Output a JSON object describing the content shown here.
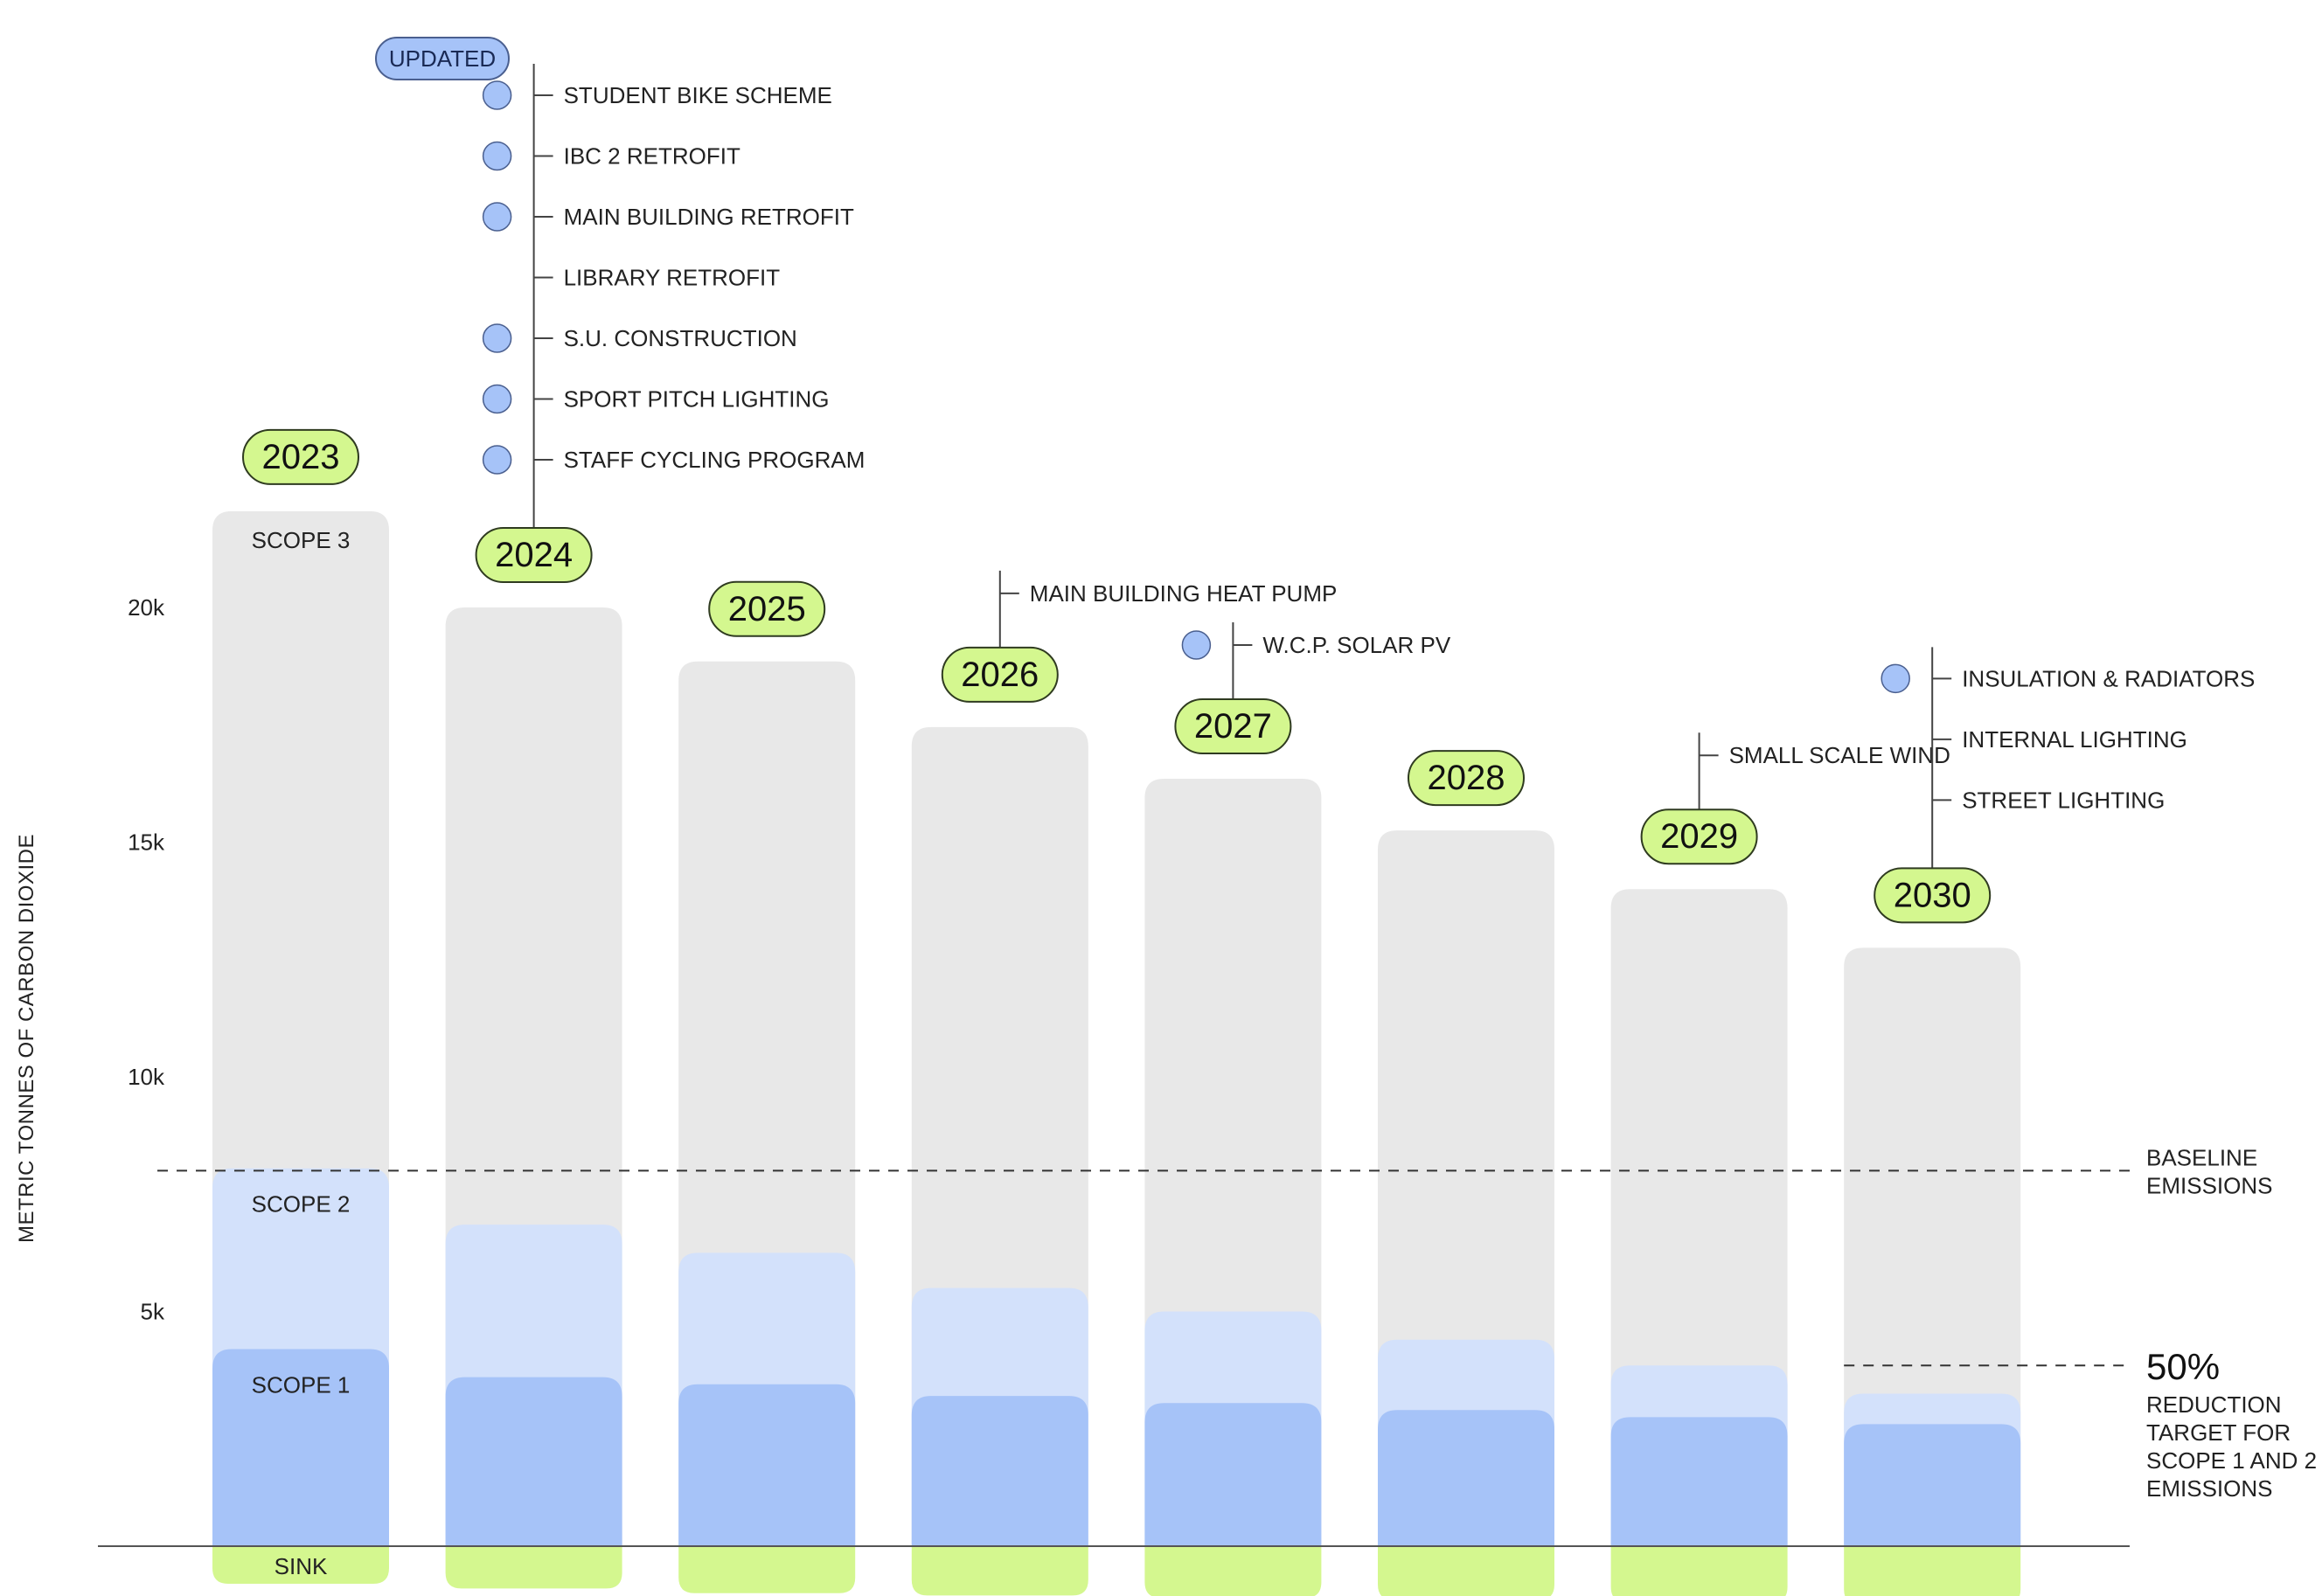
{
  "chart_data": {
    "type": "bar",
    "stacked": true,
    "ylabel": "METRIC TONNES OF CARBON DIOXIDE",
    "yticks": [
      {
        "value": 5000,
        "label": "5k"
      },
      {
        "value": 10000,
        "label": "10k"
      },
      {
        "value": 15000,
        "label": "15k"
      },
      {
        "value": 20000,
        "label": "20k"
      }
    ],
    "ylim": [
      -1200,
      33000
    ],
    "grid": false,
    "categories": [
      "2023",
      "2024",
      "2025",
      "2026",
      "2027",
      "2028",
      "2029",
      "2030"
    ],
    "series": [
      {
        "name": "SCOPE 1",
        "color": "#a6c3f8",
        "values": [
          4200,
          3600,
          3450,
          3200,
          3050,
          2900,
          2750,
          2600
        ]
      },
      {
        "name": "SCOPE 2",
        "color": "#d3e1fb",
        "values": [
          3850,
          3250,
          2800,
          2300,
          1950,
          1500,
          1100,
          650
        ]
      },
      {
        "name": "SCOPE 3",
        "color": "#e8e8e8",
        "values": [
          14000,
          13150,
          12600,
          11950,
          11350,
          10850,
          10150,
          9500
        ]
      },
      {
        "name": "SINK",
        "color": "#d4f78f",
        "values": [
          -800,
          -900,
          -1000,
          -1050,
          -1100,
          -1150,
          -1200,
          -1250
        ]
      }
    ],
    "scope_labels": {
      "scope3": "SCOPE 3",
      "scope2": "SCOPE 2",
      "scope1": "SCOPE 1",
      "sink": "SINK"
    },
    "reference_lines": [
      {
        "value": 8000,
        "style": "dashed",
        "span": "full",
        "label_lines": [
          "BASELINE",
          "EMISSIONS"
        ]
      },
      {
        "value": 4000,
        "style": "dashed",
        "span": "last",
        "big_label": "50%",
        "label_lines": [
          "REDUCTION",
          "TARGET FOR",
          "SCOPE 1 AND 2",
          "EMISSIONS"
        ]
      }
    ],
    "updated_badge": "UPDATED",
    "projects": [
      {
        "year": "2024",
        "items": [
          {
            "label": "STUDENT BIKE SCHEME",
            "dot": true
          },
          {
            "label": "IBC 2 RETROFIT",
            "dot": true
          },
          {
            "label": "MAIN BUILDING RETROFIT",
            "dot": true
          },
          {
            "label": "LIBRARY RETROFIT",
            "dot": false
          },
          {
            "label": "S.U. CONSTRUCTION",
            "dot": true
          },
          {
            "label": "SPORT PITCH LIGHTING",
            "dot": true
          },
          {
            "label": "STAFF CYCLING PROGRAM",
            "dot": true
          }
        ]
      },
      {
        "year": "2026",
        "items": [
          {
            "label": "MAIN BUILDING HEAT PUMP",
            "dot": false
          }
        ]
      },
      {
        "year": "2027",
        "items": [
          {
            "label": "W.C.P. SOLAR PV",
            "dot": true
          }
        ]
      },
      {
        "year": "2029",
        "items": [
          {
            "label": "SMALL SCALE WIND",
            "dot": false
          }
        ]
      },
      {
        "year": "2030",
        "items": [
          {
            "label": "INSULATION & RADIATORS",
            "dot": true
          },
          {
            "label": "INTERNAL LIGHTING",
            "dot": false
          },
          {
            "label": "STREET LIGHTING",
            "dot": false
          }
        ]
      }
    ],
    "colors": {
      "year_badge": "#d4f78f",
      "badge_stroke": "#2f3b20",
      "dot": "#a6c3f8",
      "dot_stroke": "#4a5f8f",
      "updated_badge": "#a6c3f8",
      "line": "#444444"
    }
  }
}
